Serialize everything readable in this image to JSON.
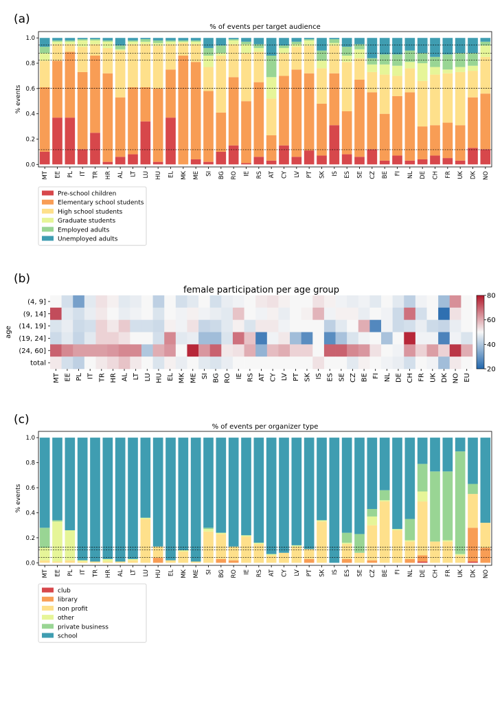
{
  "panel_labels": [
    "(a)",
    "(b)",
    "(c)"
  ],
  "chart_data": [
    {
      "type": "bar",
      "stacked": true,
      "title": "% of events per target audience",
      "xlabel": "",
      "ylabel": "% events",
      "ylim": [
        0,
        1.0
      ],
      "yticks": [
        "0.0",
        "0.2",
        "0.4",
        "0.6",
        "0.8",
        "1.0"
      ],
      "reference_lines": [
        0.116,
        0.602,
        0.825,
        0.878,
        0.945
      ],
      "legend_position": "bottom-left",
      "categories": [
        "MT",
        "EE",
        "PL",
        "IT",
        "TR",
        "HR",
        "AL",
        "LT",
        "LU",
        "HU",
        "EL",
        "MK",
        "ME",
        "SI",
        "BG",
        "RO",
        "IE",
        "RS",
        "AT",
        "CY",
        "LV",
        "PT",
        "SK",
        "IS",
        "ES",
        "SE",
        "CZ",
        "BE",
        "FI",
        "NL",
        "DE",
        "CH",
        "FR",
        "UK",
        "DK",
        "NO"
      ],
      "series": [
        {
          "name": "Pre-school children",
          "color": "#d7474b",
          "values": [
            0.1,
            0.37,
            0.37,
            0.12,
            0.25,
            0.02,
            0.06,
            0.08,
            0.34,
            0.02,
            0.37,
            0.0,
            0.04,
            0.02,
            0.1,
            0.15,
            0.01,
            0.06,
            0.03,
            0.15,
            0.06,
            0.11,
            0.07,
            0.31,
            0.08,
            0.06,
            0.12,
            0.03,
            0.07,
            0.03,
            0.04,
            0.07,
            0.05,
            0.03,
            0.13,
            0.12
          ]
        },
        {
          "name": "Elementary school students",
          "color": "#f89d55",
          "values": [
            0.51,
            0.45,
            0.52,
            0.61,
            0.61,
            0.7,
            0.47,
            0.53,
            0.27,
            0.58,
            0.38,
            0.86,
            0.77,
            0.56,
            0.31,
            0.54,
            0.49,
            0.59,
            0.2,
            0.55,
            0.69,
            0.61,
            0.41,
            0.41,
            0.34,
            0.61,
            0.45,
            0.37,
            0.47,
            0.54,
            0.26,
            0.24,
            0.28,
            0.28,
            0.4,
            0.44
          ]
        },
        {
          "name": "High school students",
          "color": "#fee08b",
          "values": [
            0.21,
            0.13,
            0.06,
            0.2,
            0.09,
            0.2,
            0.37,
            0.34,
            0.34,
            0.34,
            0.2,
            0.1,
            0.14,
            0.19,
            0.45,
            0.26,
            0.38,
            0.24,
            0.29,
            0.18,
            0.18,
            0.22,
            0.28,
            0.22,
            0.39,
            0.17,
            0.16,
            0.31,
            0.16,
            0.19,
            0.36,
            0.4,
            0.39,
            0.42,
            0.21,
            0.29
          ]
        },
        {
          "name": "Graduate students",
          "color": "#e6f598",
          "values": [
            0.06,
            0.02,
            0.02,
            0.05,
            0.03,
            0.05,
            0.01,
            0.02,
            0.02,
            0.02,
            0.02,
            0.01,
            0.02,
            0.09,
            0.02,
            0.03,
            0.07,
            0.03,
            0.17,
            0.04,
            0.02,
            0.04,
            0.06,
            0.02,
            0.05,
            0.07,
            0.06,
            0.08,
            0.08,
            0.05,
            0.14,
            0.06,
            0.03,
            0.04,
            0.04,
            0.09
          ]
        },
        {
          "name": "Employed adults",
          "color": "#99d594",
          "values": [
            0.05,
            0.01,
            0.01,
            0.01,
            0.01,
            0.01,
            0.03,
            0.01,
            0.02,
            0.02,
            0.01,
            0.01,
            0.01,
            0.06,
            0.06,
            0.01,
            0.02,
            0.03,
            0.17,
            0.02,
            0.02,
            0.01,
            0.08,
            0.03,
            0.07,
            0.04,
            0.05,
            0.08,
            0.09,
            0.09,
            0.08,
            0.08,
            0.12,
            0.11,
            0.1,
            0.03
          ]
        },
        {
          "name": "Unemployed adults",
          "color": "#3f9db1",
          "values": [
            0.07,
            0.02,
            0.02,
            0.01,
            0.01,
            0.02,
            0.06,
            0.02,
            0.01,
            0.02,
            0.02,
            0.02,
            0.02,
            0.08,
            0.06,
            0.01,
            0.03,
            0.05,
            0.14,
            0.06,
            0.03,
            0.01,
            0.1,
            0.01,
            0.07,
            0.05,
            0.16,
            0.13,
            0.13,
            0.1,
            0.12,
            0.15,
            0.13,
            0.12,
            0.12,
            0.03
          ]
        }
      ]
    },
    {
      "type": "heatmap",
      "title": "female participation per age group",
      "xlabel": "",
      "ylabel": "age",
      "columns": [
        "MT",
        "EE",
        "PL",
        "IT",
        "TR",
        "HR",
        "AL",
        "LT",
        "LU",
        "HU",
        "EL",
        "MK",
        "ME",
        "SI",
        "BG",
        "RO",
        "IE",
        "RS",
        "AT",
        "CY",
        "LV",
        "PT",
        "SK",
        "IS",
        "ES",
        "SE",
        "CZ",
        "BE",
        "FI",
        "NL",
        "DE",
        "CH",
        "FR",
        "UK",
        "DK",
        "NO",
        "EU"
      ],
      "rows": [
        "(4, 9]",
        "(9, 14]",
        "(14, 19]",
        "(19, 24]",
        "(24, 60]",
        "total"
      ],
      "colorbar": {
        "min": 20,
        "max": 80,
        "ticks": [
          "20",
          "40",
          "60",
          "80"
        ],
        "low_color": "#2166ac",
        "mid_color": "#f7f7f7",
        "high_color": "#b2182b"
      },
      "values": [
        [
          50,
          45,
          32,
          47,
          53,
          51,
          47,
          48,
          50,
          42,
          50,
          45,
          47,
          50,
          45,
          48,
          49,
          50,
          52,
          53,
          51,
          50,
          50,
          53,
          51,
          49,
          48,
          49,
          47,
          50,
          47,
          42,
          49,
          50,
          38,
          64,
          50
        ],
        [
          73,
          47,
          45,
          48,
          52,
          50,
          48,
          49,
          50,
          46,
          50,
          49,
          51,
          49,
          48,
          47,
          57,
          50,
          49,
          51,
          48,
          50,
          51,
          59,
          49,
          51,
          51,
          48,
          50,
          49,
          44,
          68,
          45,
          50,
          22,
          53,
          50
        ],
        [
          46,
          48,
          44,
          45,
          55,
          52,
          56,
          45,
          45,
          44,
          51,
          49,
          53,
          43,
          44,
          47,
          51,
          46,
          52,
          52,
          49,
          50,
          50,
          50,
          42,
          47,
          50,
          60,
          27,
          49,
          44,
          45,
          48,
          44,
          43,
          48,
          50
        ],
        [
          44,
          47,
          43,
          47,
          55,
          55,
          53,
          50,
          50,
          45,
          65,
          47,
          48,
          38,
          38,
          46,
          68,
          57,
          25,
          49,
          52,
          38,
          28,
          50,
          28,
          39,
          46,
          49,
          50,
          39,
          50,
          78,
          49,
          49,
          26,
          49,
          46
        ],
        [
          70,
          65,
          62,
          62,
          62,
          63,
          65,
          65,
          40,
          60,
          63,
          50,
          78,
          63,
          70,
          52,
          53,
          60,
          36,
          58,
          60,
          55,
          55,
          50,
          70,
          70,
          65,
          63,
          53,
          50,
          49,
          63,
          55,
          62,
          55,
          76,
          60
        ],
        [
          52,
          45,
          42,
          50,
          52,
          54,
          57,
          52,
          50,
          46,
          51,
          48,
          50,
          47,
          46,
          48,
          50,
          50,
          50,
          50,
          50,
          50,
          50,
          53,
          50,
          50,
          47,
          51,
          50,
          49,
          48,
          45,
          50,
          49,
          38,
          52,
          50
        ]
      ]
    },
    {
      "type": "bar",
      "stacked": true,
      "title": "% of events per organizer type",
      "xlabel": "",
      "ylabel": "% events",
      "ylim": [
        0,
        1.0
      ],
      "yticks": [
        "0.0",
        "0.2",
        "0.4",
        "0.6",
        "0.8",
        "1.0"
      ],
      "reference_lines": [
        0.044,
        0.103,
        0.124
      ],
      "legend_position": "bottom-left",
      "categories": [
        "MT",
        "EE",
        "PL",
        "IT",
        "TR",
        "HR",
        "AL",
        "LT",
        "LU",
        "HU",
        "EL",
        "MK",
        "ME",
        "SI",
        "BG",
        "RO",
        "IE",
        "RS",
        "AT",
        "CY",
        "LV",
        "PT",
        "SK",
        "IS",
        "ES",
        "SE",
        "CZ",
        "BE",
        "FI",
        "NL",
        "DE",
        "CH",
        "FR",
        "UK",
        "DK",
        "NO"
      ],
      "series": [
        {
          "name": "club",
          "color": "#d7474b",
          "values": [
            0.0,
            0.0,
            0.0,
            0.0,
            0.0,
            0.0,
            0.0,
            0.0,
            0.0,
            0.0,
            0.0,
            0.0,
            0.0,
            0.0,
            0.0,
            0.0,
            0.0,
            0.0,
            0.0,
            0.0,
            0.0,
            0.0,
            0.0,
            0.0,
            0.0,
            0.0,
            0.0,
            0.0,
            0.0,
            0.0,
            0.01,
            0.0,
            0.0,
            0.0,
            0.01,
            0.0
          ]
        },
        {
          "name": "library",
          "color": "#f89d55",
          "values": [
            0.0,
            0.0,
            0.0,
            0.0,
            0.0,
            0.0,
            0.0,
            0.0,
            0.0,
            0.04,
            0.0,
            0.0,
            0.0,
            0.0,
            0.03,
            0.02,
            0.0,
            0.0,
            0.0,
            0.0,
            0.0,
            0.03,
            0.0,
            0.0,
            0.03,
            0.0,
            0.02,
            0.0,
            0.0,
            0.03,
            0.05,
            0.0,
            0.0,
            0.0,
            0.27,
            0.12
          ]
        },
        {
          "name": "non profit",
          "color": "#fee08b",
          "values": [
            0.02,
            0.01,
            0.02,
            0.01,
            0.01,
            0.01,
            0.01,
            0.02,
            0.35,
            0.09,
            0.02,
            0.09,
            0.01,
            0.25,
            0.2,
            0.11,
            0.21,
            0.15,
            0.06,
            0.08,
            0.13,
            0.08,
            0.33,
            0.0,
            0.12,
            0.08,
            0.28,
            0.49,
            0.26,
            0.14,
            0.43,
            0.17,
            0.17,
            0.06,
            0.27,
            0.2
          ]
        },
        {
          "name": "other",
          "color": "#e6f598",
          "values": [
            0.1,
            0.32,
            0.24,
            0.01,
            0.0,
            0.02,
            0.0,
            0.01,
            0.01,
            0.0,
            0.0,
            0.01,
            0.0,
            0.02,
            0.01,
            0.0,
            0.01,
            0.01,
            0.01,
            0.0,
            0.01,
            0.0,
            0.01,
            0.0,
            0.01,
            0.0,
            0.07,
            0.01,
            0.01,
            0.01,
            0.08,
            0.0,
            0.01,
            0.01,
            0.0,
            0.0
          ]
        },
        {
          "name": "private business",
          "color": "#99d594",
          "values": [
            0.16,
            0.01,
            0.0,
            0.0,
            0.0,
            0.0,
            0.0,
            0.0,
            0.0,
            0.0,
            0.0,
            0.0,
            0.0,
            0.01,
            0.0,
            0.0,
            0.0,
            0.0,
            0.0,
            0.0,
            0.0,
            0.0,
            0.0,
            0.0,
            0.08,
            0.15,
            0.06,
            0.08,
            0.0,
            0.17,
            0.22,
            0.56,
            0.55,
            0.82,
            0.08,
            0.0
          ]
        },
        {
          "name": "school",
          "color": "#3f9db1",
          "values": [
            0.72,
            0.66,
            0.74,
            0.98,
            0.99,
            0.97,
            0.99,
            0.97,
            0.64,
            0.87,
            0.98,
            0.9,
            0.99,
            0.72,
            0.76,
            0.87,
            0.78,
            0.84,
            0.93,
            0.92,
            0.86,
            0.89,
            0.66,
            1.0,
            0.76,
            0.77,
            0.57,
            0.42,
            0.73,
            0.65,
            0.21,
            0.27,
            0.27,
            0.11,
            0.37,
            0.68
          ]
        }
      ]
    }
  ]
}
